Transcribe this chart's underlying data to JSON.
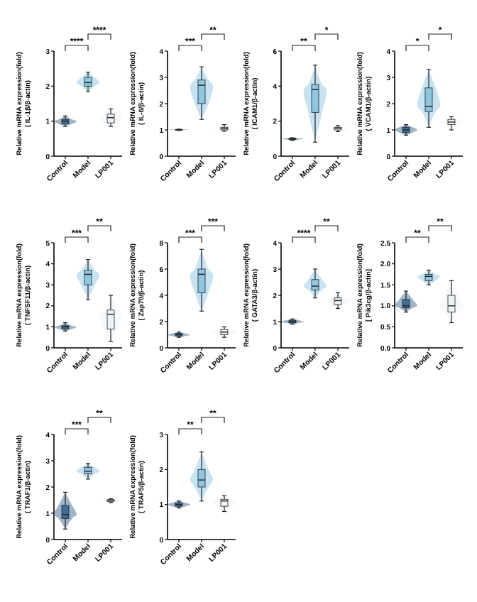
{
  "chart_data": [
    {
      "type": "box",
      "ylabel": "Relative mRNA expression(fold)\n( IL-1β/β-actin)",
      "categories": [
        "Control",
        "Model",
        "LP001"
      ],
      "colors": [
        "#3f6d96",
        "#8fc6e2",
        "#eef2f5"
      ],
      "ylim": [
        0,
        3
      ],
      "yticks": [
        0,
        1,
        2,
        3
      ],
      "annotations": [
        "****",
        "****"
      ],
      "boxes": [
        {
          "low": 0.85,
          "q1": 0.92,
          "median": 1.0,
          "q3": 1.05,
          "high": 1.15
        },
        {
          "low": 1.85,
          "q1": 2.0,
          "median": 2.1,
          "q3": 2.25,
          "high": 2.4
        },
        {
          "low": 0.85,
          "q1": 0.95,
          "median": 1.1,
          "q3": 1.2,
          "high": 1.35
        }
      ]
    },
    {
      "type": "box",
      "ylabel": "Relative mRNA expression(fold)\n( IL-6/β-actin)",
      "categories": [
        "Control",
        "Model",
        "LP001"
      ],
      "colors": [
        "#3f6d96",
        "#8fc6e2",
        "#eef2f5"
      ],
      "ylim": [
        0,
        4
      ],
      "yticks": [
        0,
        1,
        2,
        3,
        4
      ],
      "annotations": [
        "***",
        "**"
      ],
      "boxes": [
        {
          "low": 0.98,
          "q1": 1.0,
          "median": 1.0,
          "q3": 1.02,
          "high": 1.03
        },
        {
          "low": 1.4,
          "q1": 2.0,
          "median": 2.7,
          "q3": 2.9,
          "high": 3.4
        },
        {
          "low": 0.95,
          "q1": 1.0,
          "median": 1.05,
          "q3": 1.1,
          "high": 1.2
        }
      ]
    },
    {
      "type": "box",
      "ylabel": "Relative mRNA expression(fold)\n( ICAM1/β-actin)",
      "categories": [
        "Control",
        "Model",
        "LP001"
      ],
      "colors": [
        "#3f6d96",
        "#8fc6e2",
        "#eef2f5"
      ],
      "ylim": [
        0,
        6
      ],
      "yticks": [
        0,
        2,
        4,
        6
      ],
      "annotations": [
        "**",
        "*"
      ],
      "boxes": [
        {
          "low": 0.9,
          "q1": 0.95,
          "median": 1.0,
          "q3": 1.02,
          "high": 1.05
        },
        {
          "low": 0.8,
          "q1": 2.5,
          "median": 3.8,
          "q3": 4.1,
          "high": 5.2
        },
        {
          "low": 1.4,
          "q1": 1.5,
          "median": 1.6,
          "q3": 1.65,
          "high": 1.75
        }
      ]
    },
    {
      "type": "box",
      "ylabel": "Relative mRNA expression(fold)\n( VCAM1/β-actin)",
      "categories": [
        "Control",
        "Model",
        "LP001"
      ],
      "colors": [
        "#3f6d96",
        "#8fc6e2",
        "#eef2f5"
      ],
      "ylim": [
        0,
        4
      ],
      "yticks": [
        0,
        1,
        2,
        3,
        4
      ],
      "annotations": [
        "*",
        "*"
      ],
      "boxes": [
        {
          "low": 0.8,
          "q1": 0.9,
          "median": 1.0,
          "q3": 1.1,
          "high": 1.2
        },
        {
          "low": 1.1,
          "q1": 1.7,
          "median": 1.9,
          "q3": 2.6,
          "high": 3.3
        },
        {
          "low": 1.0,
          "q1": 1.2,
          "median": 1.3,
          "q3": 1.4,
          "high": 1.5
        }
      ]
    },
    {
      "type": "box",
      "ylabel": "Relative mRNA expression(fold)\n( TNFSF11/β-actin)",
      "categories": [
        "Control",
        "Model",
        "LP001"
      ],
      "colors": [
        "#3f6d96",
        "#8fc6e2",
        "#eef2f5"
      ],
      "ylim": [
        0,
        5
      ],
      "yticks": [
        0,
        1,
        2,
        3,
        4,
        5
      ],
      "annotations": [
        "***",
        "**"
      ],
      "boxes": [
        {
          "low": 0.8,
          "q1": 0.9,
          "median": 1.0,
          "q3": 1.05,
          "high": 1.2
        },
        {
          "low": 2.3,
          "q1": 3.0,
          "median": 3.5,
          "q3": 3.7,
          "high": 4.2
        },
        {
          "low": 0.3,
          "q1": 0.9,
          "median": 1.6,
          "q3": 1.8,
          "high": 2.5
        }
      ]
    },
    {
      "type": "box",
      "ylabel": "Relative mRNA expression(fold)\n( Zap70/β-actin)",
      "categories": [
        "Control",
        "Model",
        "LP001"
      ],
      "colors": [
        "#3f6d96",
        "#8fc6e2",
        "#eef2f5"
      ],
      "ylim": [
        0,
        8
      ],
      "yticks": [
        0,
        2,
        4,
        6,
        8
      ],
      "annotations": [
        "***",
        "***"
      ],
      "boxes": [
        {
          "low": 0.8,
          "q1": 0.9,
          "median": 1.0,
          "q3": 1.1,
          "high": 1.2
        },
        {
          "low": 2.8,
          "q1": 4.2,
          "median": 5.6,
          "q3": 6.0,
          "high": 7.5
        },
        {
          "low": 0.8,
          "q1": 1.0,
          "median": 1.2,
          "q3": 1.4,
          "high": 1.6
        }
      ]
    },
    {
      "type": "box",
      "ylabel": "Relative mRNA expression(fold)\n( GATA3/β-actin)",
      "categories": [
        "Control",
        "Model",
        "LP001"
      ],
      "colors": [
        "#3f6d96",
        "#8fc6e2",
        "#eef2f5"
      ],
      "ylim": [
        0,
        4
      ],
      "yticks": [
        0,
        1,
        2,
        3,
        4
      ],
      "annotations": [
        "****",
        "**"
      ],
      "boxes": [
        {
          "low": 0.9,
          "q1": 0.95,
          "median": 1.0,
          "q3": 1.05,
          "high": 1.1
        },
        {
          "low": 1.9,
          "q1": 2.2,
          "median": 2.35,
          "q3": 2.6,
          "high": 3.0
        },
        {
          "low": 1.5,
          "q1": 1.65,
          "median": 1.8,
          "q3": 1.9,
          "high": 2.1
        }
      ]
    },
    {
      "type": "box",
      "ylabel": "Relative mRNA expression(fold)\n[ Pik3cg/β-actin]",
      "categories": [
        "Control",
        "Model",
        "LP001"
      ],
      "colors": [
        "#3f6d96",
        "#8fc6e2",
        "#eef2f5"
      ],
      "ylim": [
        0,
        2.5
      ],
      "yticks": [
        {
          "value": 0,
          "label": "0.0"
        },
        {
          "value": 0.5,
          "label": "0.5"
        },
        {
          "value": 1,
          "label": "1.0"
        },
        {
          "value": 1.5,
          "label": "1.5"
        },
        {
          "value": 2,
          "label": "2.0"
        },
        {
          "value": 2.5,
          "label": "2.5"
        }
      ],
      "annotations": [
        "**",
        "**"
      ],
      "boxes": [
        {
          "low": 0.85,
          "q1": 0.95,
          "median": 1.0,
          "q3": 1.15,
          "high": 1.35
        },
        {
          "low": 1.5,
          "q1": 1.6,
          "median": 1.7,
          "q3": 1.75,
          "high": 1.85
        },
        {
          "low": 0.6,
          "q1": 0.85,
          "median": 1.0,
          "q3": 1.25,
          "high": 1.6
        }
      ]
    },
    {
      "type": "box",
      "ylabel": "Relative mRNA expression(fold)\n( TRAF1/β-actin)",
      "categories": [
        "Control",
        "Model",
        "LP001"
      ],
      "colors": [
        "#3f6d96",
        "#8fc6e2",
        "#eef2f5"
      ],
      "ylim": [
        0,
        4
      ],
      "yticks": [
        0,
        1,
        2,
        3,
        4
      ],
      "annotations": [
        "***",
        "**"
      ],
      "boxes": [
        {
          "low": 0.4,
          "q1": 0.8,
          "median": 0.95,
          "q3": 1.3,
          "high": 1.8
        },
        {
          "low": 2.3,
          "q1": 2.5,
          "median": 2.6,
          "q3": 2.75,
          "high": 2.9
        },
        {
          "low": 1.4,
          "q1": 1.45,
          "median": 1.5,
          "q3": 1.52,
          "high": 1.55
        }
      ]
    },
    {
      "type": "box",
      "ylabel": "Relative mRNA expression(fold)\n( TRAF5/β-actin)",
      "categories": [
        "Control",
        "Model",
        "LP001"
      ],
      "colors": [
        "#3f6d96",
        "#8fc6e2",
        "#eef2f5"
      ],
      "ylim": [
        0,
        3
      ],
      "yticks": [
        0,
        1,
        2,
        3
      ],
      "annotations": [
        "**",
        "**"
      ],
      "boxes": [
        {
          "low": 0.9,
          "q1": 0.95,
          "median": 1.0,
          "q3": 1.05,
          "high": 1.1
        },
        {
          "low": 1.1,
          "q1": 1.5,
          "median": 1.7,
          "q3": 2.0,
          "high": 2.5
        },
        {
          "low": 0.8,
          "q1": 0.95,
          "median": 1.1,
          "q3": 1.15,
          "high": 1.25
        }
      ]
    }
  ]
}
